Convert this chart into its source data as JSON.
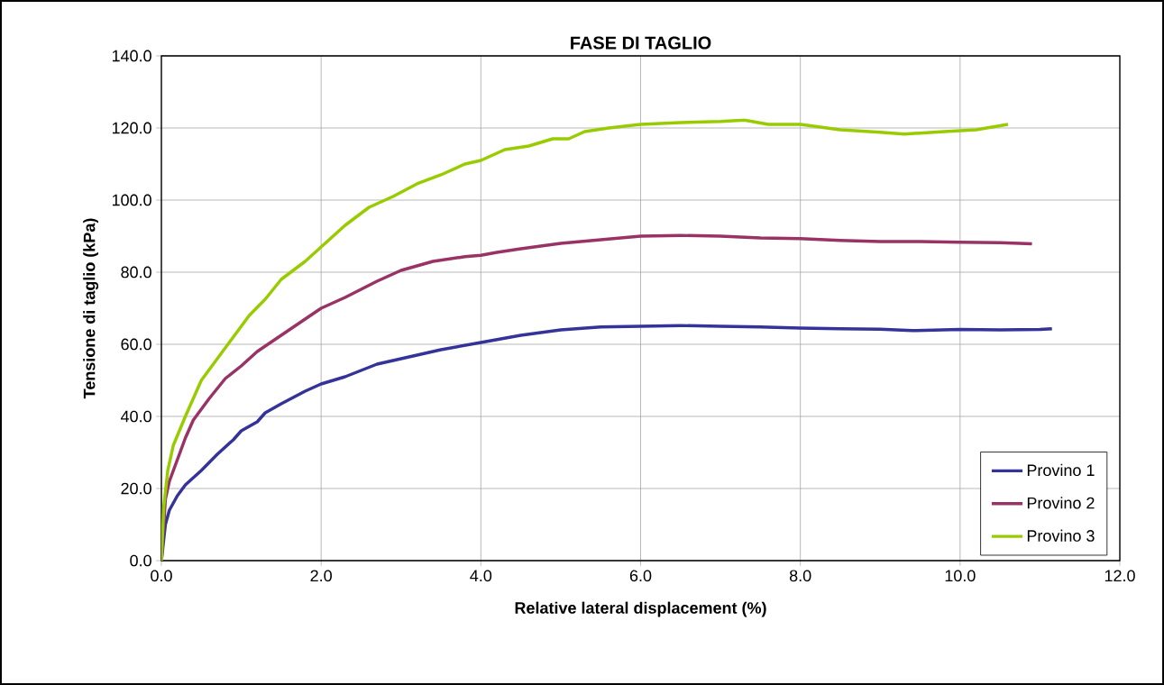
{
  "chart_data": {
    "type": "line",
    "title": "FASE DI TAGLIO",
    "xlabel": "Relative lateral displacement (%)",
    "ylabel": "Tensione di taglio (kPa)",
    "xlim": [
      0,
      12
    ],
    "ylim": [
      0,
      140
    ],
    "xticks": [
      {
        "value": 0,
        "label": "0.0"
      },
      {
        "value": 2,
        "label": "2.0"
      },
      {
        "value": 4,
        "label": "4.0"
      },
      {
        "value": 6,
        "label": "6.0"
      },
      {
        "value": 8,
        "label": "8.0"
      },
      {
        "value": 10,
        "label": "10.0"
      },
      {
        "value": 12,
        "label": "12.0"
      }
    ],
    "yticks": [
      {
        "value": 0,
        "label": "0.0"
      },
      {
        "value": 20,
        "label": "20.0"
      },
      {
        "value": 40,
        "label": "40.0"
      },
      {
        "value": 60,
        "label": "60.0"
      },
      {
        "value": 80,
        "label": "80.0"
      },
      {
        "value": 100,
        "label": "100.0"
      },
      {
        "value": 120,
        "label": "120.0"
      },
      {
        "value": 140,
        "label": "140.0"
      }
    ],
    "grid": true,
    "legend": "bottom right",
    "marker": "none",
    "line_style": "solid",
    "series": [
      {
        "name": "Provino 1",
        "color": "#333399",
        "x": [
          0,
          0.05,
          0.1,
          0.2,
          0.3,
          0.5,
          0.7,
          0.9,
          1.0,
          1.2,
          1.3,
          1.5,
          1.8,
          2.0,
          2.3,
          2.7,
          3.0,
          3.5,
          4.0,
          4.5,
          5.0,
          5.5,
          6.0,
          6.5,
          7.0,
          7.5,
          8.0,
          8.5,
          9.0,
          9.4,
          10.0,
          10.5,
          11.0,
          11.15
        ],
        "values": [
          0,
          10,
          14,
          18,
          21,
          25,
          29.5,
          33.5,
          36,
          38.5,
          41,
          43.5,
          47,
          49,
          51,
          54.5,
          56,
          58.5,
          60.5,
          62.5,
          64,
          64.8,
          65,
          65.2,
          65,
          64.8,
          64.5,
          64.3,
          64.2,
          63.8,
          64.1,
          64,
          64.1,
          64.3
        ]
      },
      {
        "name": "Provino 2",
        "color": "#993366",
        "x": [
          0,
          0.05,
          0.1,
          0.2,
          0.3,
          0.4,
          0.6,
          0.8,
          1.0,
          1.2,
          1.5,
          1.8,
          2.0,
          2.3,
          2.7,
          3.0,
          3.4,
          3.8,
          4.0,
          4.2,
          4.5,
          5.0,
          5.5,
          6.0,
          6.5,
          7.0,
          7.5,
          8.0,
          8.5,
          9.0,
          9.5,
          10.0,
          10.5,
          10.9
        ],
        "values": [
          0,
          17,
          22,
          28,
          34,
          39,
          45,
          50.5,
          54,
          58,
          62.5,
          67,
          70,
          73,
          77.5,
          80.5,
          83,
          84.3,
          84.7,
          85.5,
          86.5,
          88,
          89,
          90,
          90.2,
          90,
          89.5,
          89.3,
          88.8,
          88.5,
          88.5,
          88.3,
          88.2,
          87.9
        ]
      },
      {
        "name": "Provino 3",
        "color": "#99cc00",
        "x": [
          0,
          0.03,
          0.08,
          0.15,
          0.3,
          0.5,
          0.7,
          0.9,
          1.1,
          1.3,
          1.5,
          1.8,
          2.0,
          2.3,
          2.6,
          2.9,
          3.2,
          3.5,
          3.8,
          4.0,
          4.3,
          4.6,
          4.9,
          5.1,
          5.3,
          5.6,
          6.0,
          6.5,
          7.0,
          7.3,
          7.6,
          8.0,
          8.5,
          9.0,
          9.3,
          9.8,
          10.2,
          10.6
        ],
        "values": [
          0,
          15,
          25,
          32,
          40,
          50,
          56,
          62,
          68,
          72.5,
          78,
          83,
          87,
          93,
          98,
          101,
          104.5,
          107,
          110,
          111,
          114,
          115,
          117,
          117,
          119,
          120,
          121,
          121.5,
          121.8,
          122.2,
          121,
          121,
          119.5,
          118.8,
          118.3,
          119,
          119.5,
          121
        ]
      }
    ]
  }
}
